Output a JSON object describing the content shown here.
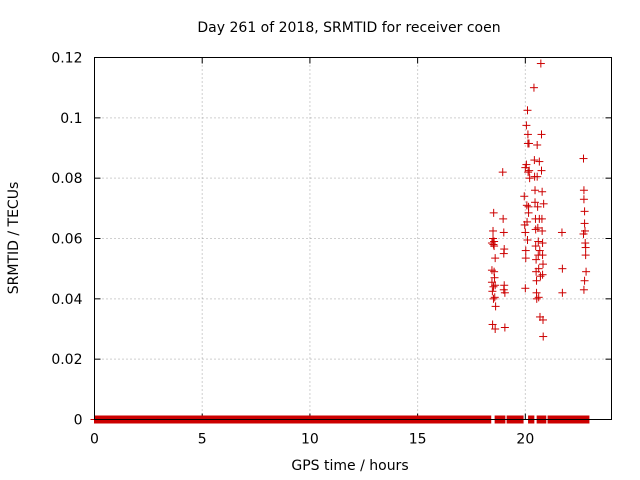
{
  "chart_data": {
    "type": "scatter",
    "title": "Day 261 of 2018, SRMTID for receiver coen",
    "xlabel": "GPS time / hours",
    "ylabel": "SRMTID / TECUs",
    "xlim": [
      0,
      24
    ],
    "ylim": [
      0,
      0.12
    ],
    "xticks": [
      0,
      5,
      10,
      15,
      20
    ],
    "yticks": [
      0,
      0.02,
      0.04,
      0.06,
      0.08,
      0.1,
      0.12
    ],
    "xtick_labels": [
      "0",
      "5",
      "10",
      "15",
      "20"
    ],
    "ytick_labels": [
      "0",
      "0.02",
      "0.04",
      "0.06",
      "0.08",
      "0.1",
      "0.12"
    ],
    "grid": true,
    "marker": "+",
    "marker_color": "#cc0000",
    "baseline_series": {
      "name": "baseline",
      "y": 0,
      "x_start": 0,
      "x_end": 22.95,
      "step": 0.0083,
      "gaps": [
        [
          18.4,
          18.6
        ],
        [
          19.05,
          19.15
        ],
        [
          19.9,
          20.15
        ],
        [
          20.4,
          20.55
        ],
        [
          20.95,
          21.05
        ]
      ]
    },
    "series": [
      {
        "name": "SRMTID",
        "points": [
          [
            18.45,
            0.0585
          ],
          [
            18.45,
            0.0495
          ],
          [
            18.45,
            0.0455
          ],
          [
            18.47,
            0.0425
          ],
          [
            18.48,
            0.0315
          ],
          [
            18.5,
            0.0625
          ],
          [
            18.5,
            0.06
          ],
          [
            18.52,
            0.058
          ],
          [
            18.52,
            0.044
          ],
          [
            18.52,
            0.04
          ],
          [
            18.53,
            0.0685
          ],
          [
            18.55,
            0.059
          ],
          [
            18.55,
            0.0575
          ],
          [
            18.55,
            0.049
          ],
          [
            18.57,
            0.047
          ],
          [
            18.58,
            0.0405
          ],
          [
            18.6,
            0.0535
          ],
          [
            18.6,
            0.0445
          ],
          [
            18.62,
            0.0375
          ],
          [
            18.6,
            0.03
          ],
          [
            18.95,
            0.082
          ],
          [
            18.97,
            0.0665
          ],
          [
            19.0,
            0.062
          ],
          [
            19.02,
            0.0565
          ],
          [
            19.0,
            0.055
          ],
          [
            19.02,
            0.0445
          ],
          [
            19.0,
            0.043
          ],
          [
            19.05,
            0.042
          ],
          [
            19.05,
            0.0305
          ],
          [
            19.95,
            0.074
          ],
          [
            19.97,
            0.0645
          ],
          [
            20.0,
            0.0835
          ],
          [
            20.0,
            0.062
          ],
          [
            20.02,
            0.056
          ],
          [
            20.02,
            0.0535
          ],
          [
            20.0,
            0.0435
          ],
          [
            20.05,
            0.0975
          ],
          [
            20.05,
            0.0845
          ],
          [
            20.07,
            0.071
          ],
          [
            20.08,
            0.0655
          ],
          [
            20.1,
            0.0595
          ],
          [
            20.1,
            0.1025
          ],
          [
            20.12,
            0.0945
          ],
          [
            20.12,
            0.0915
          ],
          [
            20.13,
            0.082
          ],
          [
            20.15,
            0.0705
          ],
          [
            20.15,
            0.0685
          ],
          [
            20.17,
            0.0915
          ],
          [
            20.18,
            0.0825
          ],
          [
            20.2,
            0.08
          ],
          [
            20.4,
            0.11
          ],
          [
            20.42,
            0.086
          ],
          [
            20.43,
            0.0805
          ],
          [
            20.45,
            0.076
          ],
          [
            20.45,
            0.072
          ],
          [
            20.47,
            0.0665
          ],
          [
            20.48,
            0.063
          ],
          [
            20.48,
            0.0575
          ],
          [
            20.5,
            0.053
          ],
          [
            20.5,
            0.049
          ],
          [
            20.52,
            0.046
          ],
          [
            20.52,
            0.042
          ],
          [
            20.53,
            0.04
          ],
          [
            20.55,
            0.091
          ],
          [
            20.55,
            0.0805
          ],
          [
            20.57,
            0.0705
          ],
          [
            20.58,
            0.0635
          ],
          [
            20.6,
            0.059
          ],
          [
            20.6,
            0.0545
          ],
          [
            20.62,
            0.05
          ],
          [
            20.62,
            0.0405
          ],
          [
            20.65,
            0.0665
          ],
          [
            20.65,
            0.0855
          ],
          [
            20.67,
            0.056
          ],
          [
            20.68,
            0.034
          ],
          [
            20.7,
            0.0475
          ],
          [
            20.72,
            0.118
          ],
          [
            20.75,
            0.0945
          ],
          [
            20.75,
            0.0825
          ],
          [
            20.77,
            0.0665
          ],
          [
            20.78,
            0.0625
          ],
          [
            20.8,
            0.0585
          ],
          [
            20.8,
            0.0545
          ],
          [
            20.82,
            0.0515
          ],
          [
            20.8,
            0.048
          ],
          [
            20.82,
            0.033
          ],
          [
            20.83,
            0.0275
          ],
          [
            20.78,
            0.0755
          ],
          [
            20.85,
            0.0715
          ],
          [
            21.7,
            0.062
          ],
          [
            21.72,
            0.05
          ],
          [
            21.72,
            0.042
          ],
          [
            22.7,
            0.0865
          ],
          [
            22.72,
            0.076
          ],
          [
            22.72,
            0.073
          ],
          [
            22.75,
            0.069
          ],
          [
            22.75,
            0.065
          ],
          [
            22.77,
            0.0625
          ],
          [
            22.78,
            0.0585
          ],
          [
            22.8,
            0.057
          ],
          [
            22.8,
            0.0545
          ],
          [
            22.82,
            0.049
          ],
          [
            22.75,
            0.046
          ],
          [
            22.72,
            0.043
          ],
          [
            22.7,
            0.0615
          ]
        ]
      }
    ]
  }
}
